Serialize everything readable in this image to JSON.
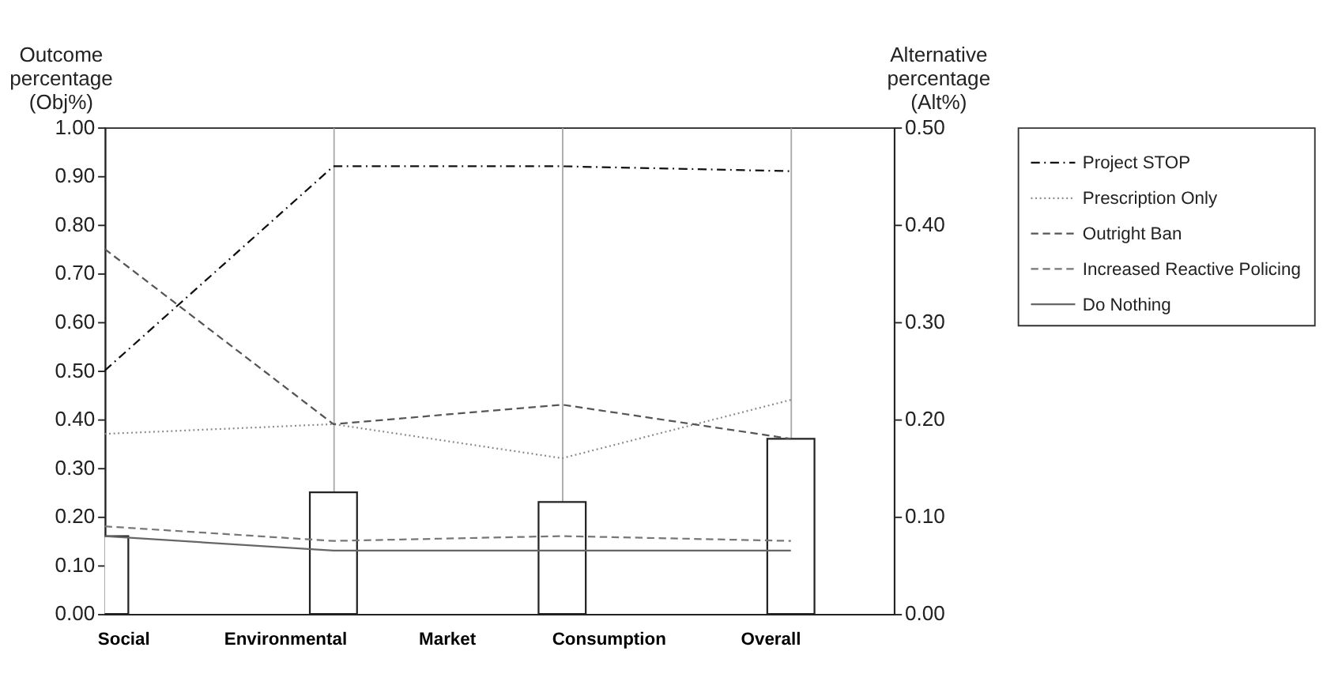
{
  "chart_data": {
    "type": "line",
    "ylabel": "Outcome percentage (Obj%)",
    "y2label": "Alternative percentage (Alt%)",
    "categories": [
      null,
      null,
      null,
      null
    ],
    "annotations": [
      "Social",
      "Environmental",
      "Market",
      "Consumption",
      "Overall"
    ],
    "series": [
      {
        "name": "Project STOP",
        "color": "#111111",
        "line_style": "dashdot",
        "values": [
          0.5,
          0.92,
          0.92,
          0.91
        ]
      },
      {
        "name": "Prescription Only",
        "color": "#888888",
        "line_style": "dotted",
        "values": [
          0.37,
          0.39,
          0.32,
          0.44
        ]
      },
      {
        "name": "Outright Ban",
        "color": "#555555",
        "line_style": "dashed",
        "values": [
          0.75,
          0.39,
          0.43,
          0.36
        ]
      },
      {
        "name": "Increased Reactive Policing",
        "color": "#777777",
        "line_style": "dashed",
        "values": [
          0.18,
          0.15,
          0.16,
          0.15
        ]
      },
      {
        "name": "Do Nothing",
        "color": "#666666",
        "line_style": "solid",
        "values": [
          0.16,
          0.13,
          0.13,
          0.13
        ]
      },
      {
        "type": "bar",
        "axis": "y2",
        "color": "#222222",
        "values": [
          0.08,
          0.125,
          0.115,
          0.18
        ]
      }
    ],
    "ylim": [
      0,
      1
    ],
    "yticks": [
      {
        "value": 0,
        "label": "0.00"
      },
      {
        "value": 0.1,
        "label": "0.10"
      },
      {
        "value": 0.2,
        "label": "0.20"
      },
      {
        "value": 0.3,
        "label": "0.30"
      },
      {
        "value": 0.4,
        "label": "0.40"
      },
      {
        "value": 0.5,
        "label": "0.50"
      },
      {
        "value": 0.6,
        "label": "0.60"
      },
      {
        "value": 0.7,
        "label": "0.70"
      },
      {
        "value": 0.8,
        "label": "0.80"
      },
      {
        "value": 0.9,
        "label": "0.90"
      },
      {
        "value": 1,
        "label": "1.00"
      }
    ],
    "y2lim": [
      0,
      0.5
    ],
    "y2ticks": [
      {
        "value": 0,
        "label": "0.00"
      },
      {
        "value": 0.1,
        "label": "0.10"
      },
      {
        "value": 0.2,
        "label": "0.20"
      },
      {
        "value": 0.3,
        "label": "0.30"
      },
      {
        "value": 0.4,
        "label": "0.40"
      },
      {
        "value": 0.5,
        "label": "0.50"
      }
    ],
    "grid": "x",
    "legend": "right"
  }
}
